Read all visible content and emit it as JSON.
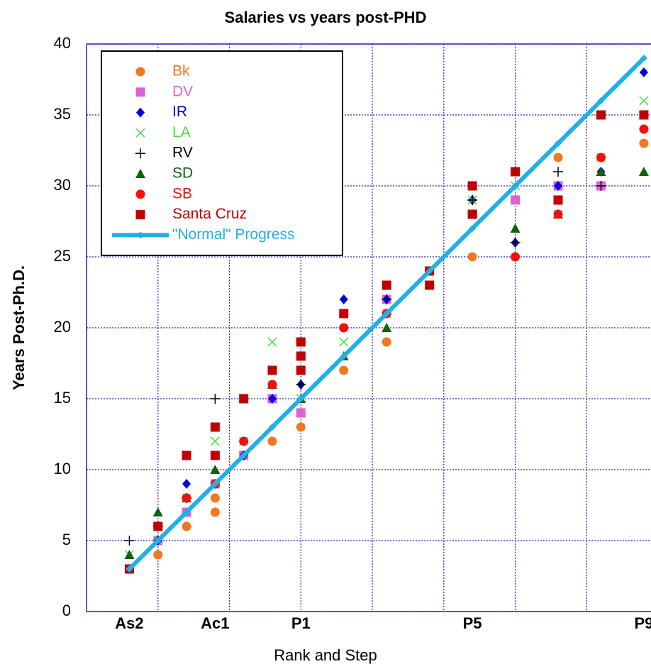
{
  "chart_data": {
    "type": "scatter",
    "title": "Salaries vs years post-PHD",
    "x_label": "Rank and Step",
    "y_label": "Years Post-Ph.D.",
    "xlim": [
      0,
      39.5
    ],
    "ylim": [
      0,
      40
    ],
    "xticks": [
      {
        "value": 3,
        "label": "As2"
      },
      {
        "value": 9,
        "label": "Ac1"
      },
      {
        "value": 15,
        "label": "P1"
      },
      {
        "value": 27,
        "label": "P5"
      },
      {
        "value": 39,
        "label": "P9"
      }
    ],
    "xgrid": [
      5,
      10,
      15,
      20,
      25,
      30,
      35
    ],
    "yticks": [
      0,
      5,
      10,
      15,
      20,
      25,
      30,
      35,
      40
    ],
    "grid": true,
    "legend": "upper left",
    "series": [
      {
        "name": "Bk",
        "color": "#f07820",
        "marker": "circle",
        "x": [
          3,
          5,
          7,
          9,
          9,
          13,
          15,
          18,
          21,
          27,
          33,
          39
        ],
        "values": [
          3,
          4,
          6,
          7,
          8,
          12,
          13,
          17,
          19,
          25,
          32,
          33
        ]
      },
      {
        "name": "DV",
        "color": "#e060d0",
        "marker": "square",
        "x": [
          3,
          5,
          7,
          9,
          11,
          13,
          15,
          21,
          27,
          30,
          33,
          36
        ],
        "values": [
          3,
          5,
          7,
          9,
          11,
          15,
          14,
          22,
          28,
          29,
          30,
          30
        ]
      },
      {
        "name": "IR",
        "color": "#0000e0",
        "marker": "diamond",
        "x": [
          3,
          5,
          7,
          9,
          11,
          13,
          15,
          18,
          21,
          27,
          30,
          33,
          36,
          39
        ],
        "values": [
          3,
          5,
          9,
          9,
          11,
          15,
          16,
          22,
          22,
          29,
          26,
          30,
          31,
          38
        ]
      },
      {
        "name": "LA",
        "color": "#40e040",
        "marker": "cross",
        "x": [
          3,
          5,
          7,
          9,
          11,
          13,
          15,
          18,
          21,
          27,
          30,
          33,
          36,
          39
        ],
        "values": [
          4,
          5,
          8,
          12,
          12,
          19,
          15,
          19,
          21,
          29,
          30,
          28,
          32,
          36
        ]
      },
      {
        "name": "RV",
        "color": "#000000",
        "marker": "plus",
        "x": [
          3,
          5,
          7,
          9,
          15,
          21,
          27,
          30,
          33,
          36
        ],
        "values": [
          5,
          6,
          8,
          15,
          16,
          22,
          29,
          26,
          31,
          30
        ]
      },
      {
        "name": "SD",
        "color": "#106010",
        "marker": "triangle",
        "x": [
          3,
          5,
          7,
          9,
          13,
          15,
          18,
          21,
          30,
          33,
          36,
          39
        ],
        "values": [
          4,
          7,
          8,
          10,
          16,
          15,
          18,
          20,
          27,
          28,
          31,
          31
        ]
      },
      {
        "name": "SB",
        "color": "#f01010",
        "marker": "circle",
        "x": [
          3,
          5,
          7,
          9,
          11,
          13,
          15,
          18,
          21,
          24,
          27,
          30,
          33,
          36,
          39
        ],
        "values": [
          3,
          6,
          8,
          9,
          12,
          16,
          19,
          20,
          21,
          24,
          28,
          25,
          28,
          32,
          34
        ]
      },
      {
        "name": "Santa Cruz",
        "color": "#c00000",
        "marker": "square",
        "x": [
          3,
          5,
          7,
          9,
          9,
          11,
          13,
          15,
          15,
          15,
          18,
          21,
          24,
          24,
          27,
          27,
          30,
          33,
          36,
          39
        ],
        "values": [
          3,
          6,
          11,
          11,
          13,
          15,
          17,
          17,
          18,
          19,
          21,
          23,
          23,
          24,
          28,
          30,
          31,
          29,
          35,
          35
        ]
      },
      {
        "name": "\"Normal\" Progress",
        "color": "#20b0e8",
        "marker": "line",
        "x": [
          3,
          5,
          7,
          9,
          11,
          13,
          15,
          18,
          21,
          24,
          27,
          30,
          33,
          36,
          39
        ],
        "values": [
          3,
          5,
          7,
          9,
          11,
          13,
          15,
          18,
          21,
          24,
          27,
          30,
          33,
          36,
          39
        ]
      }
    ]
  }
}
